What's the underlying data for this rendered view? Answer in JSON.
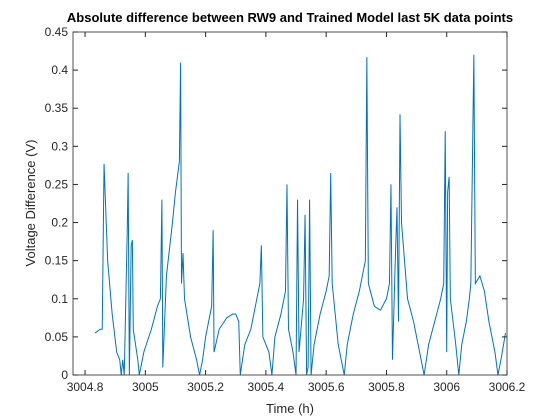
{
  "chart_data": {
    "type": "line",
    "title": "Absolute difference between RW9 and Trained Model last 5K data points",
    "x_label": "Time (h)",
    "y_label": "Voltage Difference (V)",
    "xlim": [
      3004.76,
      3006.2
    ],
    "ylim": [
      0,
      0.45
    ],
    "xticks": [
      3004.8,
      3005,
      3005.2,
      3005.4,
      3005.6,
      3005.8,
      3006,
      3006.2
    ],
    "yticks": [
      0,
      0.05,
      0.1,
      0.15,
      0.2,
      0.25,
      0.3,
      0.35,
      0.4,
      0.45
    ],
    "grid": false,
    "series": [
      {
        "color": "#0072bd",
        "x": [
          3004.833,
          3004.85,
          3004.857,
          3004.863,
          3004.875,
          3004.89,
          3004.905,
          3004.915,
          3004.92,
          3004.925,
          3004.93,
          3004.94,
          3004.943,
          3004.947,
          3004.953,
          3004.957,
          3004.96,
          3004.975,
          3004.98,
          3004.995,
          3005.02,
          3005.04,
          3005.05,
          3005.055,
          3005.058,
          3005.07,
          3005.09,
          3005.1,
          3005.113,
          3005.117,
          3005.12,
          3005.125,
          3005.13,
          3005.15,
          3005.17,
          3005.18,
          3005.19,
          3005.2,
          3005.21,
          3005.22,
          3005.225,
          3005.228,
          3005.245,
          3005.27,
          3005.29,
          3005.3,
          3005.31,
          3005.315,
          3005.33,
          3005.35,
          3005.37,
          3005.38,
          3005.385,
          3005.39,
          3005.41,
          3005.42,
          3005.43,
          3005.45,
          3005.465,
          3005.47,
          3005.475,
          3005.49,
          3005.5,
          3005.505,
          3005.51,
          3005.525,
          3005.53,
          3005.535,
          3005.54,
          3005.545,
          3005.55,
          3005.56,
          3005.58,
          3005.6,
          3005.61,
          3005.615,
          3005.62,
          3005.64,
          3005.66,
          3005.67,
          3005.69,
          3005.71,
          3005.72,
          3005.73,
          3005.735,
          3005.74,
          3005.76,
          3005.78,
          3005.8,
          3005.81,
          3005.815,
          3005.82,
          3005.83,
          3005.835,
          3005.84,
          3005.845,
          3005.85,
          3005.87,
          3005.89,
          3005.91,
          3005.925,
          3005.94,
          3005.96,
          3005.98,
          3005.99,
          3005.995,
          3006.0,
          3006.003,
          3006.008,
          3006.012,
          3006.03,
          3006.04,
          3006.05,
          3006.065,
          3006.075,
          3006.08,
          3006.09,
          3006.095,
          3006.11,
          3006.125,
          3006.14,
          3006.16,
          3006.17,
          3006.18,
          3006.195
        ],
        "values": [
          0.055,
          0.06,
          0.06,
          0.277,
          0.15,
          0.08,
          0.03,
          0.02,
          0,
          0.02,
          0,
          0.19,
          0.265,
          0,
          0.17,
          0.177,
          0.06,
          0.02,
          0,
          0.03,
          0.06,
          0.09,
          0.1,
          0.23,
          0.01,
          0.13,
          0.2,
          0.24,
          0.28,
          0.41,
          0.12,
          0.16,
          0.1,
          0.05,
          0.02,
          0,
          0.02,
          0.05,
          0.07,
          0.09,
          0.19,
          0.03,
          0.06,
          0.075,
          0.08,
          0.08,
          0.07,
          0,
          0.04,
          0.06,
          0.1,
          0.12,
          0.17,
          0.05,
          0.03,
          0,
          0.05,
          0.08,
          0.11,
          0.25,
          0.06,
          0.03,
          0,
          0.23,
          0.03,
          0.1,
          0.21,
          0,
          0.01,
          0.23,
          0,
          0.04,
          0.08,
          0.11,
          0.13,
          0.265,
          0.12,
          0.04,
          0,
          0.04,
          0.08,
          0.11,
          0.13,
          0.15,
          0.417,
          0.12,
          0.09,
          0.085,
          0.1,
          0.12,
          0.25,
          0.02,
          0.16,
          0.22,
          0.07,
          0.342,
          0.2,
          0.1,
          0.07,
          0.03,
          0,
          0.04,
          0.07,
          0.1,
          0.12,
          0.32,
          0.03,
          0.24,
          0.26,
          0.1,
          0.04,
          0,
          0.04,
          0.07,
          0.1,
          0.12,
          0.42,
          0.12,
          0.13,
          0.11,
          0.07,
          0.03,
          0,
          0.02,
          0.055
        ]
      }
    ]
  }
}
